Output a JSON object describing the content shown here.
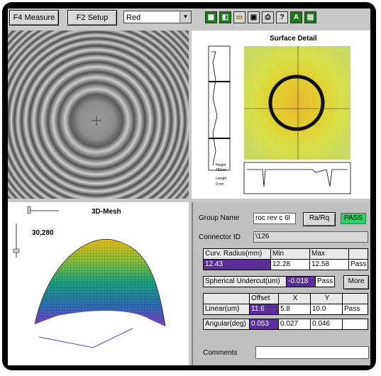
{
  "toolbar": {
    "measure_label": "F4  Measure",
    "setup_label": "F2 Setup",
    "color_select_value": "Red",
    "icons": [
      "grid-icon",
      "chart-icon",
      "folder-open-icon",
      "save-icon",
      "print-icon",
      "help-icon",
      "text-icon",
      "calculator-icon"
    ]
  },
  "surface": {
    "title": "Surface Detail",
    "height_label": "Height",
    "height_value": "482nm",
    "length_label": "Length",
    "length_value": "0 nm"
  },
  "mesh": {
    "title": "3D-Mesh",
    "value": "30,280"
  },
  "data": {
    "group_name_label": "Group Name",
    "group_name_value": "roc rev c 6l",
    "ra_rq_label": "Ra/Rq",
    "pass_badge": "PASS",
    "connector_id_label": "Connector ID",
    "connector_id_value": "\\126",
    "curv_radius_label": "Curv. Radius(mm)",
    "min_label": "Min",
    "max_label": "Max",
    "curv_value": "12.43",
    "curv_min": "12.28",
    "curv_max": "12.58",
    "curv_result": "Pass",
    "spherical_label": "Spherical Undercut(um)",
    "spherical_value": "-0.018",
    "spherical_result": "Pass",
    "more_label": "More",
    "offset_label": "Offset",
    "x_label": "X",
    "y_label": "Y",
    "linear_label": "Linear(um)",
    "linear_offset": "11.6",
    "linear_x": "5.8",
    "linear_y": "10.0",
    "linear_result": "Pass",
    "angular_label": "Angular(deg)",
    "angular_offset": "0.053",
    "angular_x": "0.027",
    "angular_y": "0.046",
    "comments_label": "Comments",
    "comments_value": ""
  }
}
